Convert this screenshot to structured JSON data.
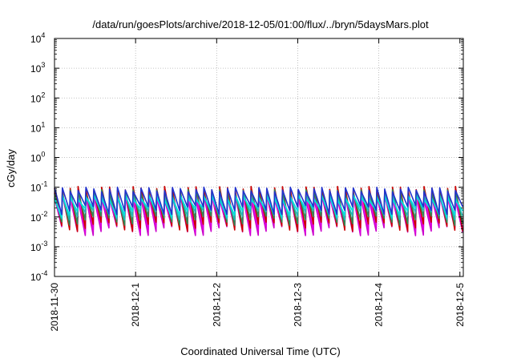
{
  "chart_data": {
    "type": "line",
    "title": "/data/run/goesPlots/archive/2018-12-05/01:00/flux/../bryn/5daysMars.plot",
    "xlabel": "Coordinated Universal Time (UTC)",
    "ylabel": "cGy/day",
    "yscale": "log",
    "ylim": [
      0.0001,
      10000
    ],
    "xlim": [
      "2018-11-30",
      "2018-12-05 01:00"
    ],
    "grid": true,
    "y_ticks": [
      {
        "base": "10",
        "exp": "-4",
        "value": 0.0001
      },
      {
        "base": "10",
        "exp": "-3",
        "value": 0.001
      },
      {
        "base": "10",
        "exp": "-2",
        "value": 0.01
      },
      {
        "base": "10",
        "exp": "-1",
        "value": 0.1
      },
      {
        "base": "10",
        "exp": "0",
        "value": 1
      },
      {
        "base": "10",
        "exp": "1",
        "value": 10
      },
      {
        "base": "10",
        "exp": "2",
        "value": 100
      },
      {
        "base": "10",
        "exp": "3",
        "value": 1000
      },
      {
        "base": "10",
        "exp": "4",
        "value": 10000
      }
    ],
    "x_ticks": [
      "2018-11-30",
      "2018-12-1",
      "2018-12-2",
      "2018-12-3",
      "2018-12-4",
      "2018-12-5"
    ],
    "x_tick_days": [
      0,
      1,
      2,
      3,
      4,
      5
    ],
    "x_max_day": 5.042,
    "sawtooth_cycles": 52,
    "series": [
      {
        "color": "#cc00cc",
        "peak": 0.045,
        "trough": 0.0035
      },
      {
        "color": "#dd00dd",
        "peak": 0.055,
        "trough": 0.0045
      },
      {
        "color": "#ee22ee",
        "peak": 0.06,
        "trough": 0.006
      },
      {
        "color": "#cc0000",
        "peak": 0.09,
        "trough": 0.005
      },
      {
        "color": "#2e8b57",
        "peak": 0.07,
        "trough": 0.008
      },
      {
        "color": "#22b8b8",
        "peak": 0.05,
        "trough": 0.012
      },
      {
        "color": "#00e0e0",
        "peak": 0.045,
        "trough": 0.015
      },
      {
        "color": "#2233cc",
        "peak": 0.085,
        "trough": 0.018
      }
    ]
  }
}
